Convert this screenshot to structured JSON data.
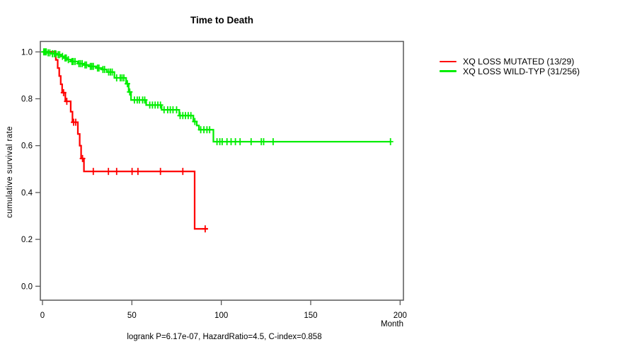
{
  "chart_data": {
    "type": "line",
    "subtype": "kaplan-meier-step-curves",
    "title": "Time to Death",
    "xlabel": "Month",
    "ylabel": "cumulative survival rate",
    "caption": "logrank P=6.17e-07, HazardRatio=4.5, C-index=0.858",
    "xlim": [
      0,
      200
    ],
    "ylim": [
      0.0,
      1.0
    ],
    "x_ticks": [
      "0",
      "50",
      "100",
      "150",
      "200"
    ],
    "x_tick_values": [
      0,
      50,
      100,
      150,
      200
    ],
    "y_ticks": [
      "0.0",
      "0.2",
      "0.4",
      "0.6",
      "0.8",
      "1.0"
    ],
    "y_tick_values": [
      0.0,
      0.2,
      0.4,
      0.6,
      0.8,
      1.0
    ],
    "grid": false,
    "legend_position": "right-outside",
    "axis_color": "#595959",
    "series": [
      {
        "name": "XQ LOSS MUTATED (13/29)",
        "color": "#ff0000",
        "end_month": 92.5,
        "steps": [
          [
            0,
            1.0
          ],
          [
            7.5,
            0.966
          ],
          [
            8.5,
            0.931
          ],
          [
            9.4,
            0.897
          ],
          [
            10.2,
            0.862
          ],
          [
            11,
            0.826
          ],
          [
            12.8,
            0.789
          ],
          [
            15.8,
            0.745
          ],
          [
            16.8,
            0.7
          ],
          [
            19.8,
            0.65
          ],
          [
            20.8,
            0.6
          ],
          [
            21.6,
            0.545
          ],
          [
            23.2,
            0.49
          ],
          [
            85.1,
            0.245
          ]
        ],
        "censor_months": [
          11.8,
          13.6,
          17.4,
          18.6,
          22.4,
          28.4,
          36.9,
          41.5,
          50.1,
          53.4,
          66,
          78.5,
          91
        ]
      },
      {
        "name": "XQ LOSS WILD-TYP (31/256)",
        "color": "#00ee00",
        "end_month": 194.6,
        "steps": [
          [
            0,
            1.0
          ],
          [
            2.5,
            0.996
          ],
          [
            5,
            0.992
          ],
          [
            8,
            0.988
          ],
          [
            10.5,
            0.981
          ],
          [
            12,
            0.974
          ],
          [
            14,
            0.967
          ],
          [
            15.8,
            0.959
          ],
          [
            19.8,
            0.95
          ],
          [
            23,
            0.944
          ],
          [
            26,
            0.938
          ],
          [
            30,
            0.931
          ],
          [
            33,
            0.925
          ],
          [
            36,
            0.914
          ],
          [
            40.2,
            0.889
          ],
          [
            46.8,
            0.864
          ],
          [
            48.2,
            0.829
          ],
          [
            49.5,
            0.795
          ],
          [
            58,
            0.773
          ],
          [
            66.6,
            0.753
          ],
          [
            76.5,
            0.728
          ],
          [
            84.4,
            0.703
          ],
          [
            86.3,
            0.686
          ],
          [
            87.5,
            0.668
          ],
          [
            95.6,
            0.617
          ]
        ],
        "censor_months": [
          0.7,
          1.4,
          2.1,
          3.2,
          4.1,
          5.6,
          6.6,
          7.4,
          8.8,
          9.6,
          11.2,
          12.6,
          13.3,
          14.5,
          16.5,
          17.2,
          18.2,
          20.4,
          21.2,
          22.2,
          23.8,
          24.6,
          26.8,
          27.6,
          28.4,
          30.8,
          31.6,
          33.8,
          34.7,
          37,
          38,
          39,
          41.5,
          43.5,
          44.5,
          45.5,
          47.5,
          48.8,
          51.4,
          53,
          54.2,
          56,
          57.2,
          60,
          61.5,
          63,
          64.5,
          66,
          68,
          70,
          71.5,
          73,
          75,
          77,
          78.5,
          80,
          81.5,
          83,
          85.2,
          88.5,
          90.3,
          92,
          93.5,
          97.6,
          99.2,
          100.5,
          103.2,
          105.5,
          107.9,
          110.5,
          116.7,
          122.4,
          123.7,
          129,
          194.6
        ]
      }
    ]
  }
}
